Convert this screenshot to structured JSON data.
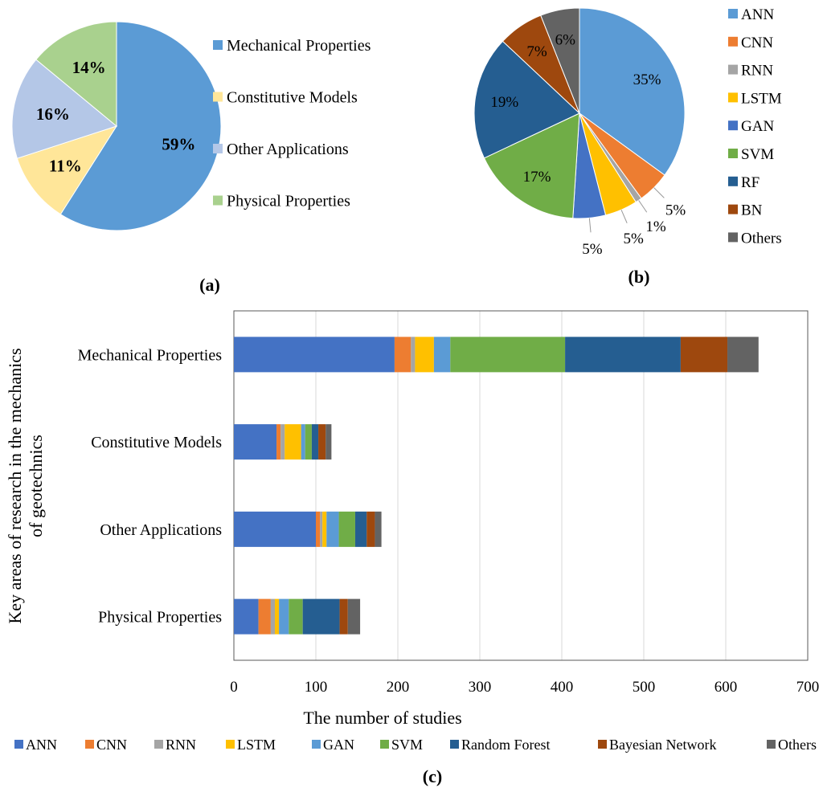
{
  "chart_data": [
    {
      "type": "pie",
      "panel_label": "(a)",
      "slices": [
        {
          "name": "Mechanical Properties",
          "value": 59,
          "label": "59%",
          "color": "#5b9bd5"
        },
        {
          "name": "Constitutive Models",
          "value": 11,
          "label": "11%",
          "color": "#ffe699"
        },
        {
          "name": "Other Applications",
          "value": 16,
          "label": "16%",
          "color": "#b4c7e7"
        },
        {
          "name": "Physical Properties",
          "value": 14,
          "label": "14%",
          "color": "#a9d18e"
        }
      ],
      "legend_position": "right",
      "start_angle_deg": 0,
      "direction": "clockwise"
    },
    {
      "type": "pie",
      "panel_label": "(b)",
      "slices": [
        {
          "name": "ANN",
          "value": 35,
          "label": "35%",
          "color": "#5b9bd5"
        },
        {
          "name": "CNN",
          "value": 5,
          "label": "5%",
          "color": "#ed7d31"
        },
        {
          "name": "RNN",
          "value": 1,
          "label": "1%",
          "color": "#a5a5a5"
        },
        {
          "name": "LSTM",
          "value": 5,
          "label": "5%",
          "color": "#ffc000"
        },
        {
          "name": "GAN",
          "value": 5,
          "label": "5%",
          "color": "#4472c4"
        },
        {
          "name": "SVM",
          "value": 17,
          "label": "17%",
          "color": "#70ad47"
        },
        {
          "name": "RF",
          "value": 19,
          "label": "19%",
          "color": "#255e91"
        },
        {
          "name": "BN",
          "value": 7,
          "label": "7%",
          "color": "#9e480e"
        },
        {
          "name": "Others",
          "value": 6,
          "label": "6%",
          "color": "#636363"
        }
      ],
      "legend_position": "right",
      "start_angle_deg": 0,
      "direction": "clockwise"
    },
    {
      "type": "bar",
      "orientation": "horizontal",
      "stacked": true,
      "panel_label": "(c)",
      "ylabel": "Key areas of research in the mechanics of geotechnics",
      "xlabel": "The number  of studies",
      "xlim": [
        0,
        700
      ],
      "xticks": [
        0,
        100,
        200,
        300,
        400,
        500,
        600,
        700
      ],
      "grid": "vertical",
      "legend_position": "bottom",
      "categories": [
        "Mechanical Properties",
        "Constitutive Models",
        "Other Applications",
        "Physical Properties"
      ],
      "series": [
        {
          "name": "ANN",
          "color": "#4472c4",
          "values": [
            196,
            52,
            100,
            30
          ]
        },
        {
          "name": "CNN",
          "color": "#ed7d31",
          "values": [
            20,
            5,
            5,
            15
          ]
        },
        {
          "name": "RNN",
          "color": "#a5a5a5",
          "values": [
            5,
            5,
            3,
            5
          ]
        },
        {
          "name": "LSTM",
          "color": "#ffc000",
          "values": [
            23,
            20,
            5,
            5
          ]
        },
        {
          "name": "GAN",
          "color": "#5b9bd5",
          "values": [
            20,
            5,
            15,
            12
          ]
        },
        {
          "name": "SVM",
          "color": "#70ad47",
          "values": [
            140,
            8,
            20,
            17
          ]
        },
        {
          "name": "Random Forest",
          "color": "#255e91",
          "values": [
            141,
            8,
            14,
            45
          ]
        },
        {
          "name": "Bayesian Network",
          "color": "#9e480e",
          "values": [
            57,
            9,
            10,
            10
          ]
        },
        {
          "name": "Others",
          "color": "#636363",
          "values": [
            38,
            7,
            8,
            15
          ]
        }
      ]
    }
  ]
}
